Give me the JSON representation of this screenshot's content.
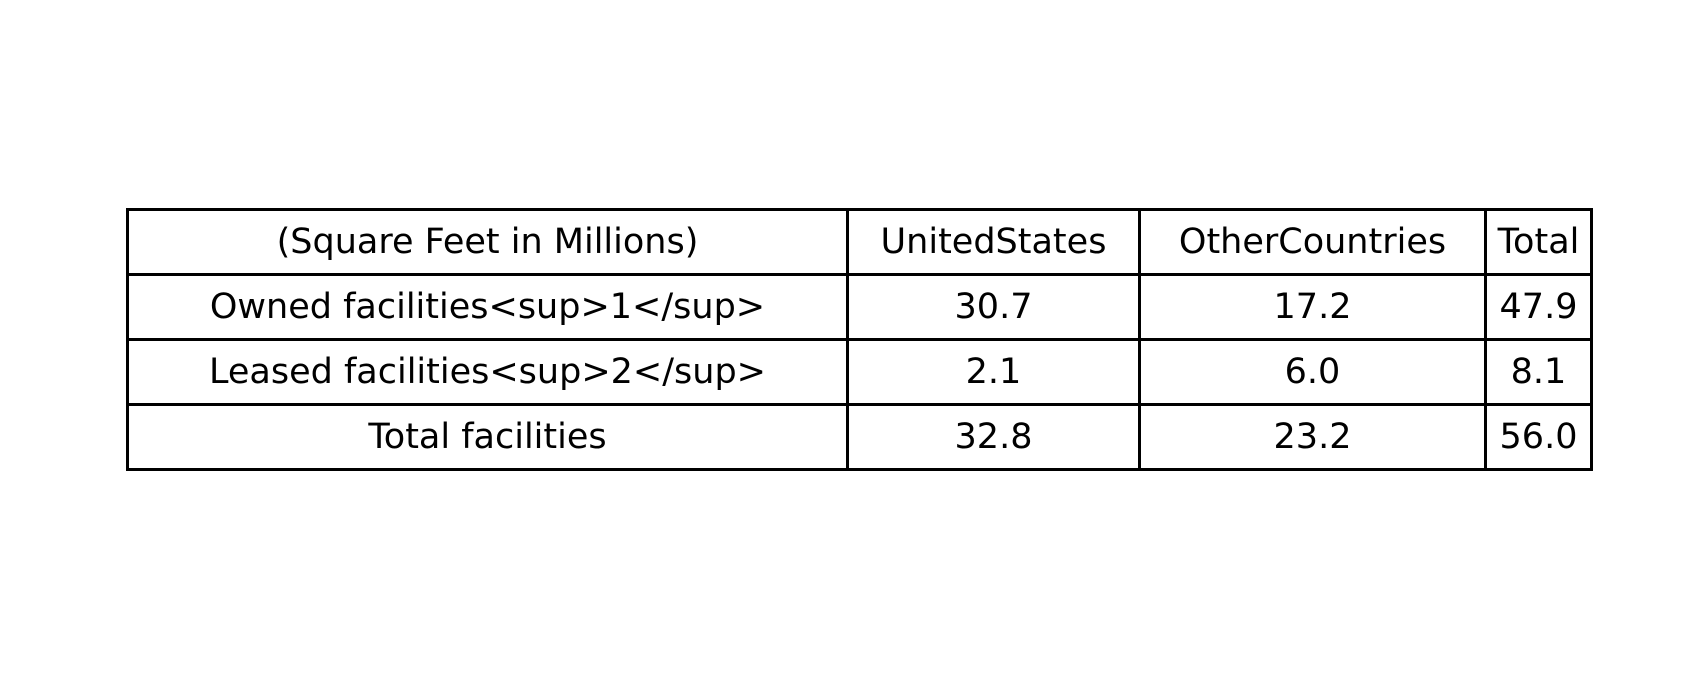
{
  "table": {
    "header": [
      "(Square Feet in Millions)",
      "UnitedStates",
      "OtherCountries",
      "Total"
    ],
    "rows": [
      [
        "Owned facilities<sup>1</sup>",
        "30.7",
        "17.2",
        "47.9"
      ],
      [
        "Leased facilities<sup>2</sup>",
        "2.1",
        "6.0",
        "8.1"
      ],
      [
        "Total facilities",
        "32.8",
        "23.2",
        "56.0"
      ]
    ]
  }
}
